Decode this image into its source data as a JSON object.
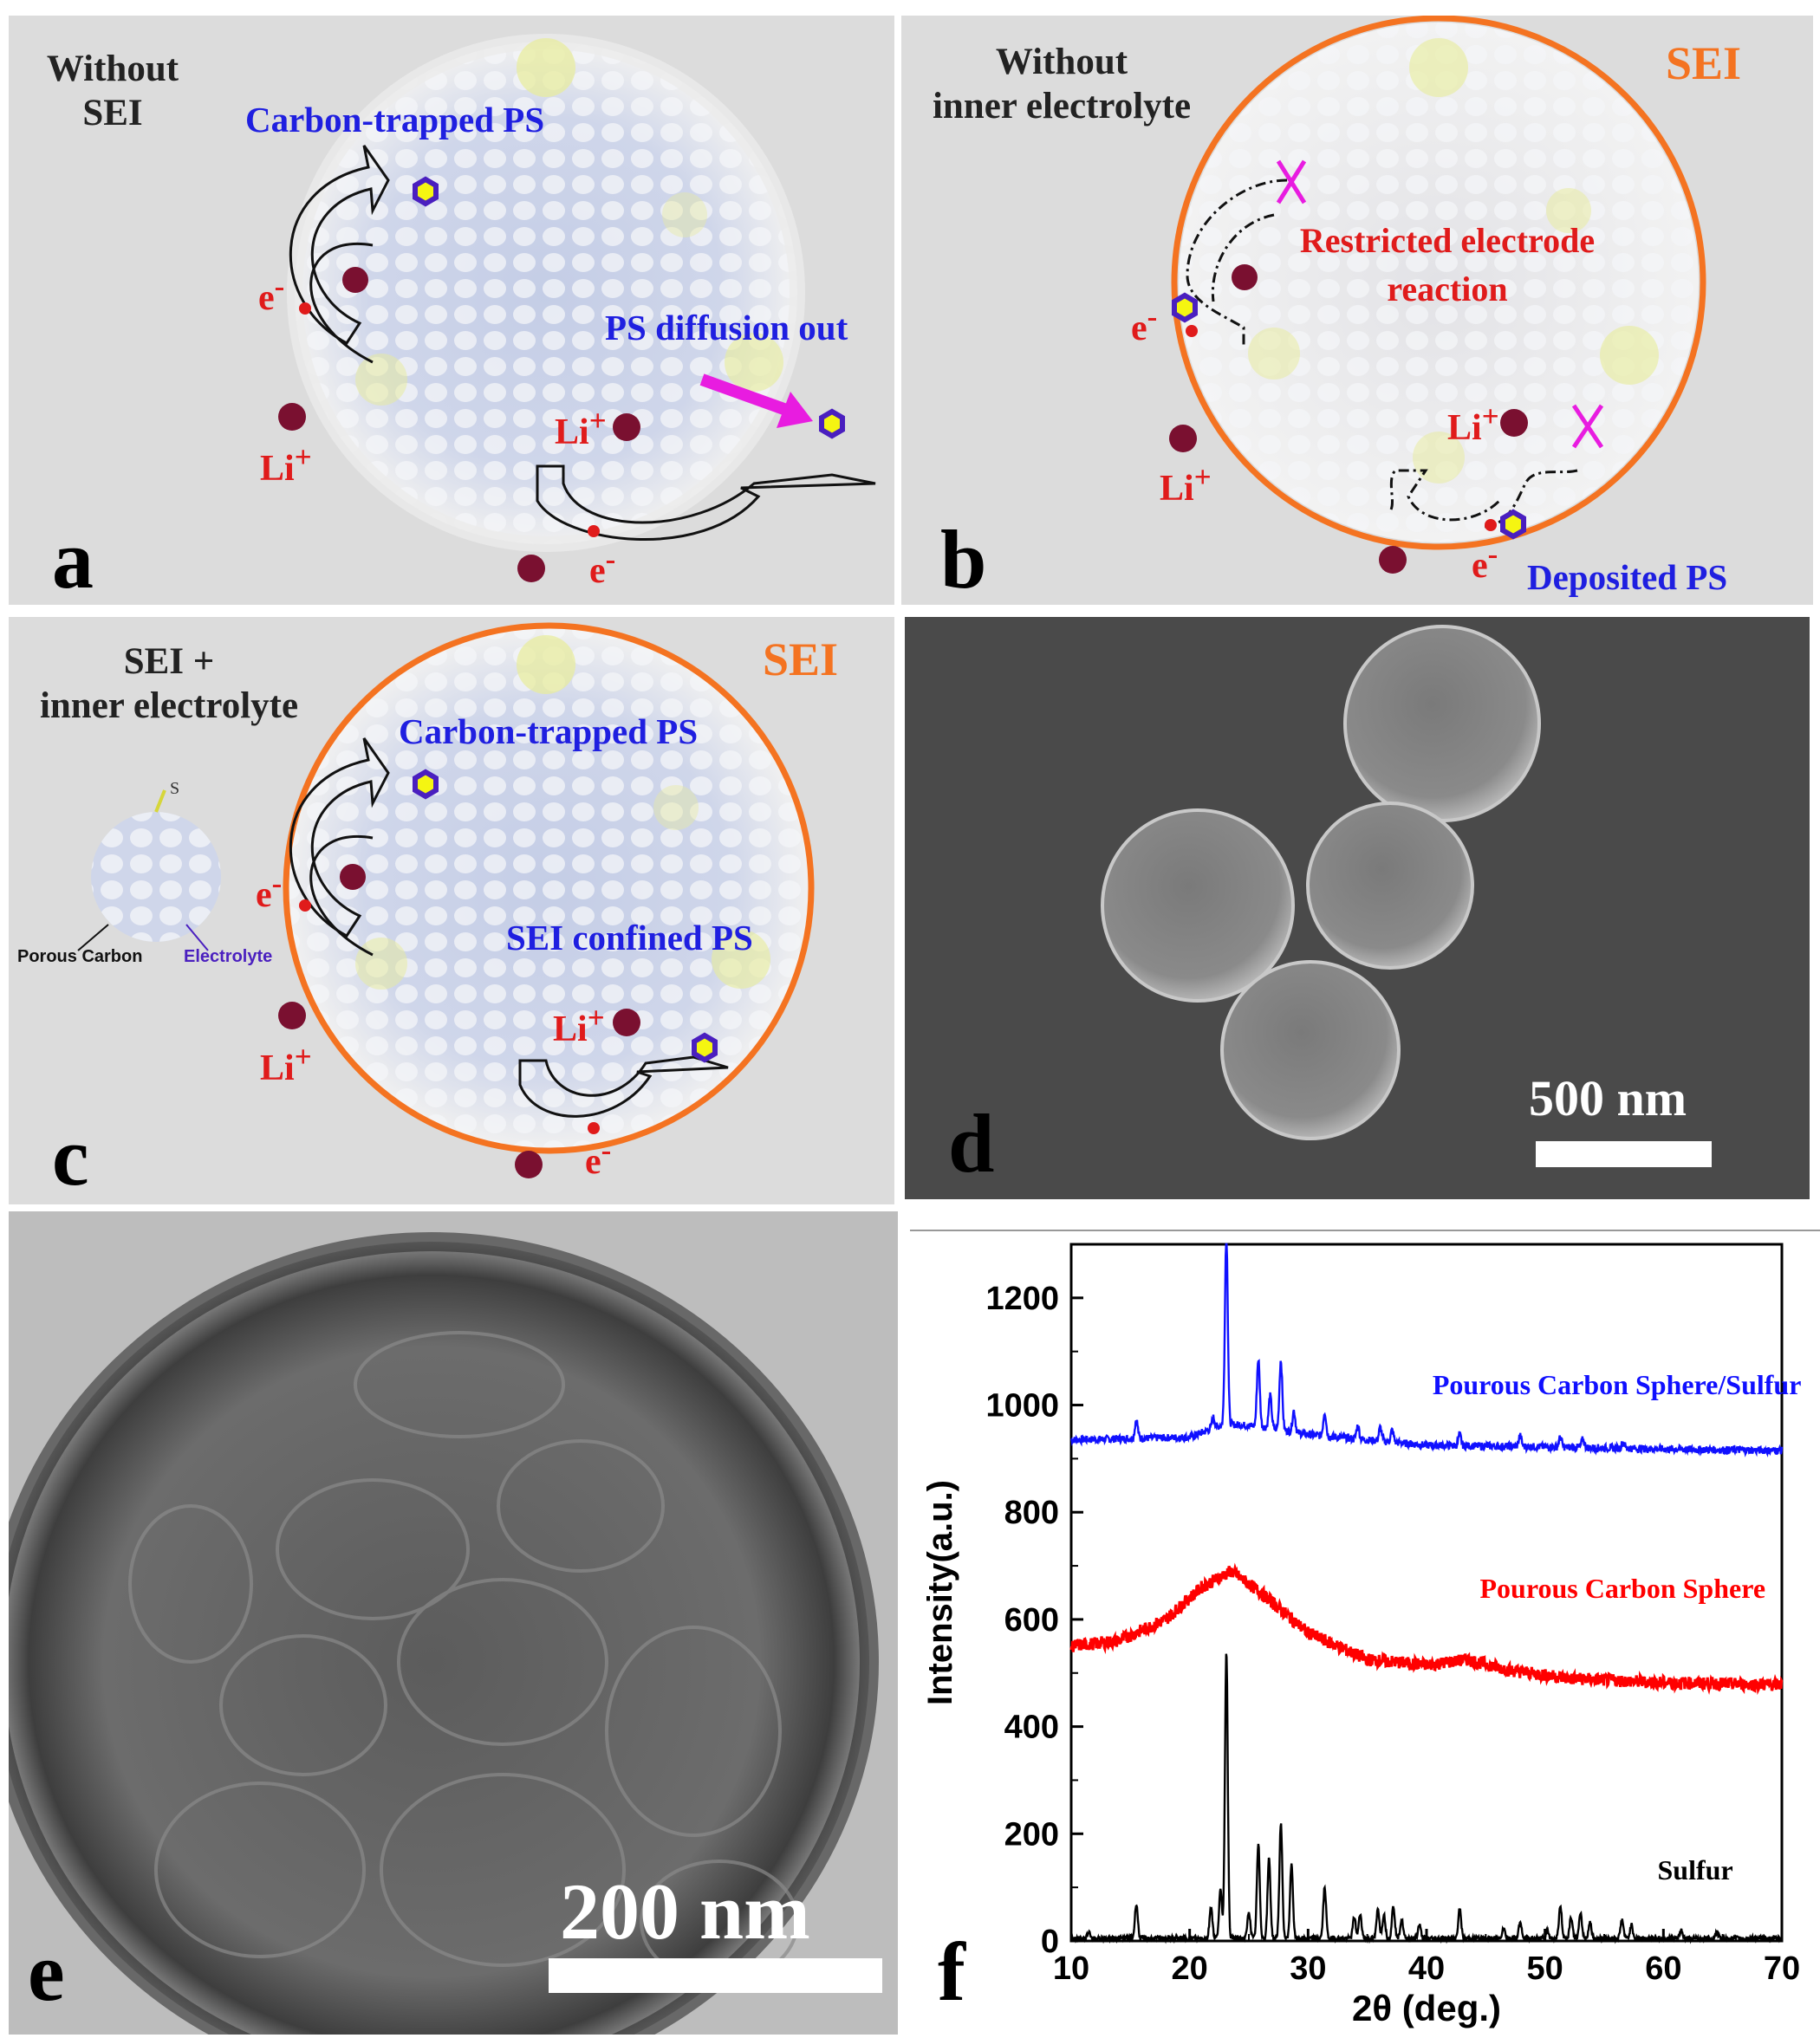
{
  "figure": {
    "panel_a": {
      "letter": "a",
      "title_line1": "Without",
      "title_line2": "SEI",
      "carbon_trapped": "Carbon-trapped PS",
      "diffusion": "PS diffusion out",
      "li_ion": "Li",
      "li_sup": "+",
      "electron": "e",
      "e_sup": "-"
    },
    "panel_b": {
      "letter": "b",
      "title_line1": "Without",
      "title_line2": "inner electrolyte",
      "sei": "SEI",
      "restricted_line1": "Restricted electrode",
      "restricted_line2": "reaction",
      "deposited": "Deposited PS",
      "li_ion": "Li",
      "li_sup": "+",
      "electron": "e",
      "e_sup": "-"
    },
    "panel_c": {
      "letter": "c",
      "title_line1": "SEI +",
      "title_line2": "inner electrolyte",
      "sei": "SEI",
      "carbon_trapped": "Carbon-trapped PS",
      "sei_confined": "SEI confined PS",
      "inset_s": "S",
      "inset_porous": "Porous Carbon",
      "inset_electrolyte": "Electrolyte",
      "li_ion": "Li",
      "li_sup": "+",
      "electron": "e",
      "e_sup": "-"
    },
    "panel_d": {
      "letter": "d",
      "scale_bar": "500 nm"
    },
    "panel_e": {
      "letter": "e",
      "scale_bar": "200 nm"
    },
    "panel_f": {
      "letter": "f"
    }
  },
  "colors": {
    "panel_bg": "#dcdcdc",
    "sei_orange": "#f47321",
    "label_blue": "#1f1fe0",
    "label_red": "#e01b1b",
    "ion_maroon": "#7a1030",
    "magenta": "#e81ce0",
    "sem_bg": "#4a4a4a",
    "xrd_blue": "#1010ff",
    "xrd_red": "#ff0000",
    "xrd_black": "#000000"
  },
  "chart_data": {
    "type": "line",
    "xlabel": "2θ (deg.)",
    "ylabel": "Intensity(a.u.)",
    "xlim": [
      10,
      70
    ],
    "ylim": [
      0,
      1300
    ],
    "xticks": [
      10,
      20,
      30,
      40,
      50,
      60,
      70
    ],
    "yticks": [
      0,
      200,
      400,
      600,
      800,
      1000,
      1200
    ],
    "series": [
      {
        "name": "Pourous Carbon Sphere/Sulfur",
        "color": "#1010ff",
        "baseline": [
          [
            10,
            935
          ],
          [
            20,
            940
          ],
          [
            23,
            965
          ],
          [
            26,
            960
          ],
          [
            30,
            945
          ],
          [
            40,
            925
          ],
          [
            50,
            922
          ],
          [
            60,
            918
          ],
          [
            70,
            915
          ]
        ],
        "peaks": [
          [
            15.5,
            35
          ],
          [
            22,
            20
          ],
          [
            23.1,
            355
          ],
          [
            25.8,
            125
          ],
          [
            26.8,
            60
          ],
          [
            27.7,
            130
          ],
          [
            28.8,
            40
          ],
          [
            31.4,
            45
          ],
          [
            34.2,
            25
          ],
          [
            36.1,
            25
          ],
          [
            37.1,
            22
          ],
          [
            42.8,
            20
          ],
          [
            47.9,
            20
          ],
          [
            51.3,
            18
          ],
          [
            53.2,
            15
          ],
          [
            56.6,
            12
          ]
        ],
        "noise": 7
      },
      {
        "name": "Pourous Carbon Sphere",
        "color": "#ff0000",
        "baseline": [
          [
            10,
            550
          ],
          [
            14,
            560
          ],
          [
            18,
            600
          ],
          [
            21,
            660
          ],
          [
            23.5,
            690
          ],
          [
            26,
            650
          ],
          [
            30,
            575
          ],
          [
            35,
            525
          ],
          [
            40,
            515
          ],
          [
            43.5,
            525
          ],
          [
            47,
            505
          ],
          [
            52,
            490
          ],
          [
            60,
            482
          ],
          [
            70,
            478
          ]
        ],
        "peaks": [],
        "noise": 12
      },
      {
        "name": "Sulfur",
        "color": "#000000",
        "baseline": [
          [
            10,
            5
          ],
          [
            70,
            5
          ]
        ],
        "peaks": [
          [
            11.5,
            12
          ],
          [
            15.5,
            65
          ],
          [
            21.8,
            60
          ],
          [
            22.6,
            90
          ],
          [
            23.1,
            535
          ],
          [
            25.0,
            50
          ],
          [
            25.8,
            175
          ],
          [
            26.7,
            150
          ],
          [
            27.7,
            215
          ],
          [
            28.6,
            140
          ],
          [
            31.4,
            95
          ],
          [
            33.9,
            40
          ],
          [
            34.4,
            45
          ],
          [
            35.9,
            55
          ],
          [
            36.4,
            45
          ],
          [
            37.2,
            60
          ],
          [
            37.9,
            35
          ],
          [
            39.4,
            25
          ],
          [
            42.8,
            55
          ],
          [
            46.5,
            20
          ],
          [
            47.9,
            30
          ],
          [
            50.2,
            15
          ],
          [
            51.3,
            60
          ],
          [
            52.2,
            40
          ],
          [
            53.0,
            45
          ],
          [
            53.8,
            30
          ],
          [
            56.5,
            35
          ],
          [
            57.3,
            25
          ],
          [
            61.5,
            15
          ],
          [
            64.5,
            12
          ]
        ],
        "noise": 4
      }
    ],
    "annotations": [
      "Pourous Carbon Sphere/Sulfur",
      "Pourous Carbon Sphere",
      "Sulfur"
    ]
  }
}
